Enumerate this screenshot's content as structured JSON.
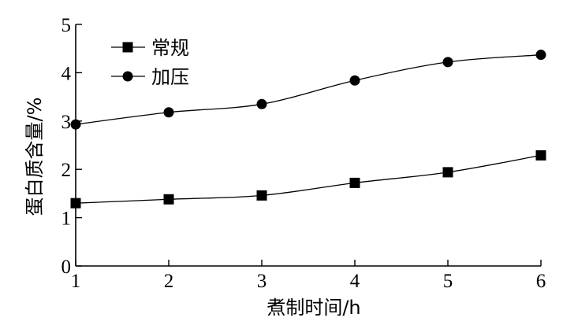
{
  "chart_data": {
    "type": "line",
    "x": [
      1,
      2,
      3,
      4,
      5,
      6
    ],
    "series": [
      {
        "name": "常规",
        "marker": "square",
        "values": [
          1.3,
          1.38,
          1.46,
          1.72,
          1.94,
          2.29
        ]
      },
      {
        "name": "加压",
        "marker": "circle",
        "values": [
          2.93,
          3.18,
          3.35,
          3.84,
          4.22,
          4.37
        ]
      }
    ],
    "xlabel": "煮制时间/h",
    "ylabel": "蛋白质含量/%",
    "xlim": [
      1,
      6
    ],
    "ylim": [
      0,
      5
    ],
    "xticks": [
      "1",
      "2",
      "3",
      "4",
      "5",
      "6"
    ],
    "yticks": [
      "0",
      "1",
      "2",
      "3",
      "4",
      "5"
    ],
    "grid": false,
    "legend_position": "top-left",
    "color": "#000000"
  }
}
